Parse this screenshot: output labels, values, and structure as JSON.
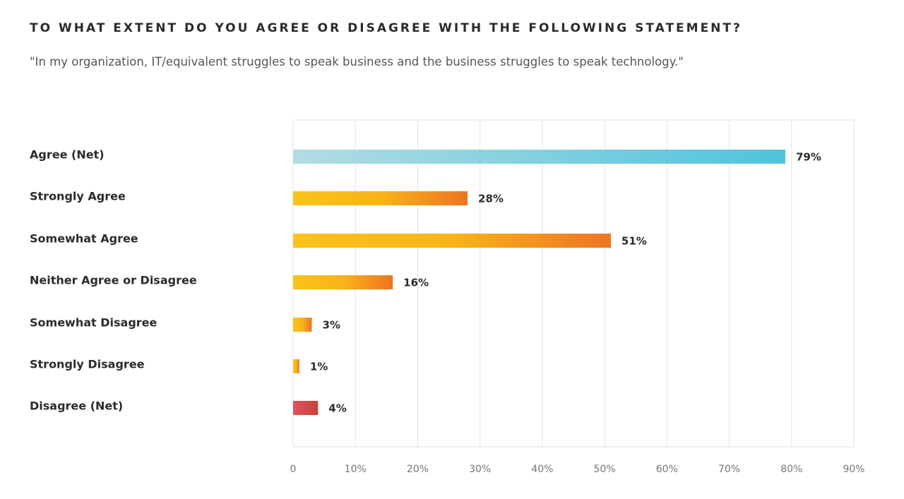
{
  "chart_data": {
    "type": "bar",
    "orientation": "horizontal",
    "title": "TO WHAT EXTENT DO YOU AGREE OR DISAGREE WITH THE FOLLOWING STATEMENT?",
    "subtitle": "\"In my organization, IT/equivalent struggles to speak business and the business struggles to speak technology.\"",
    "categories": [
      "Agree (Net)",
      "Strongly Agree",
      "Somewhat Agree",
      "Neither Agree or Disagree",
      "Somewhat Disagree",
      "Strongly Disagree",
      "Disagree (Net)"
    ],
    "values": [
      79,
      28,
      51,
      16,
      3,
      1,
      4
    ],
    "value_labels": [
      "79%",
      "28%",
      "51%",
      "16%",
      "3%",
      "1%",
      "4%"
    ],
    "bar_styles": [
      "blue",
      "orange",
      "orange",
      "orange",
      "orange",
      "orange",
      "red"
    ],
    "xlim": [
      0,
      90
    ],
    "xticks": [
      0,
      10,
      20,
      30,
      40,
      50,
      60,
      70,
      80,
      90
    ],
    "xtick_labels": [
      "0",
      "10%",
      "20%",
      "30%",
      "40%",
      "50%",
      "60%",
      "70%",
      "80%",
      "90%"
    ],
    "xlabel": "",
    "ylabel": "",
    "grid": true,
    "colors": {
      "blue_start": "#b2dde2",
      "blue_end": "#4fc3de",
      "orange_start": "#fbc21b",
      "orange_mid": "#f8b418",
      "orange_end": "#ee7423",
      "red_start": "#e2545e",
      "red_end": "#c5413c",
      "grid": "#e3e3e3"
    }
  }
}
